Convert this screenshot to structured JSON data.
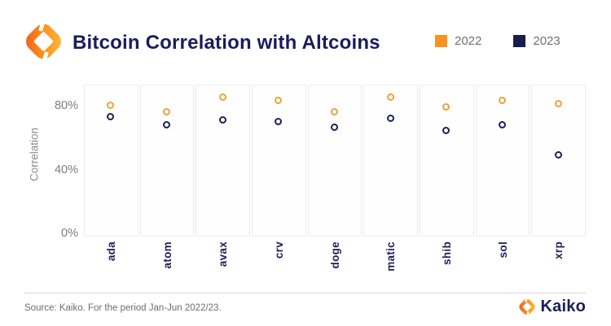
{
  "header": {
    "title": "Bitcoin Correlation with Altcoins"
  },
  "legend": {
    "items": [
      {
        "label": "2022",
        "color": "#f7941d"
      },
      {
        "label": "2023",
        "color": "#191c4f"
      }
    ]
  },
  "chart_data": {
    "type": "scatter",
    "title": "Bitcoin Correlation with Altcoins",
    "xlabel": "",
    "ylabel": "Correlation",
    "unit": "%",
    "categories": [
      "ada",
      "atom",
      "avax",
      "crv",
      "doge",
      "matic",
      "shib",
      "sol",
      "xrp"
    ],
    "series": [
      {
        "name": "2022",
        "color": "#e9a23a",
        "marker": "open-circle",
        "values": [
          80,
          76,
          85,
          83,
          76,
          85,
          79,
          83,
          81
        ]
      },
      {
        "name": "2023",
        "color": "#1b2153",
        "marker": "open-circle",
        "values": [
          73,
          68,
          71,
          70,
          66,
          72,
          64,
          68,
          49
        ]
      }
    ],
    "yticks": [
      {
        "label": "80%",
        "value": 80
      },
      {
        "label": "40%",
        "value": 40
      },
      {
        "label": "0%",
        "value": 0
      }
    ],
    "ylim": [
      0,
      93
    ],
    "grid": "faceted-columns",
    "legend_position": "top-right"
  },
  "footer": {
    "source": "Source: Kaiko. For the period Jan-Jun 2022/23.",
    "brand": "Kaiko"
  },
  "icons": {
    "kaiko_logo": "orange-hexagonal-ring",
    "legend_swatch": "filled-square"
  }
}
